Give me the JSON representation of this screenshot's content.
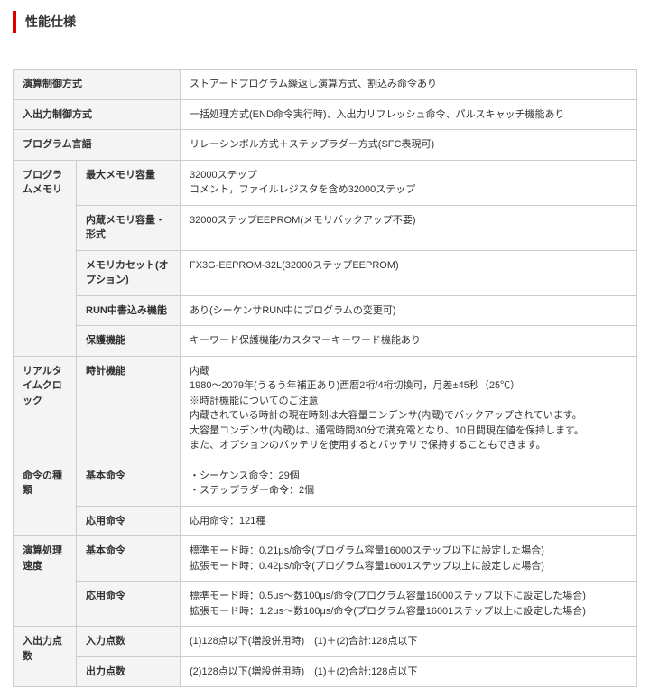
{
  "title": "性能仕様",
  "colWidths": [
    "70px",
    "115px",
    "auto"
  ],
  "rows": [
    {
      "type": "wide",
      "label": "演算制御方式",
      "value": "ストアードプログラム繰返し演算方式、割込み命令あり"
    },
    {
      "type": "wide",
      "label": "入出力制御方式",
      "value": "一括処理方式(END命令実行時)、入出力リフレッシュ命令、パルスキャッチ機能あり"
    },
    {
      "type": "wide",
      "label": "プログラム言語",
      "value": "リレーシンボル方式＋ステップラダー方式(SFC表現可)"
    },
    {
      "type": "group",
      "group": "プログラムメモリ",
      "items": [
        {
          "label": "最大メモリ容量",
          "value": "32000ステップ\nコメント，ファイルレジスタを含め32000ステップ"
        },
        {
          "label": "内蔵メモリ容量・形式",
          "value": "32000ステップEEPROM(メモリバックアップ不要)"
        },
        {
          "label": "メモリカセット(オプション)",
          "value": "FX3G-EEPROM-32L(32000ステップEEPROM)"
        },
        {
          "label": "RUN中書込み機能",
          "value": "あり(シーケンサRUN中にプログラムの変更可)"
        },
        {
          "label": "保護機能",
          "value": "キーワード保護機能/カスタマーキーワード機能あり"
        }
      ]
    },
    {
      "type": "group",
      "group": "リアルタイムクロック",
      "items": [
        {
          "label": "時計機能",
          "value": "内蔵\n1980～2079年(うるう年補正あり)西暦2桁/4桁切換可，月差±45秒（25℃）\n※時計機能についてのご注意\n内蔵されている時計の現在時刻は大容量コンデンサ(内蔵)でバックアップされています。\n大容量コンデンサ(内蔵)は、通電時間30分で満充電となり、10日間現在値を保持します。\nまた、オプションのバッテリを使用するとバッテリで保持することもできます。"
        }
      ]
    },
    {
      "type": "group",
      "group": "命令の種類",
      "items": [
        {
          "label": "基本命令",
          "value": "・シーケンス命令：29個\n・ステップラダー命令：2個"
        },
        {
          "label": "応用命令",
          "value": "応用命令：121種"
        }
      ]
    },
    {
      "type": "group",
      "group": "演算処理速度",
      "items": [
        {
          "label": "基本命令",
          "value": "標準モード時：0.21μs/命令(プログラム容量16000ステップ以下に設定した場合)\n拡張モード時：0.42μs/命令(プログラム容量16001ステップ以上に設定した場合)"
        },
        {
          "label": "応用命令",
          "value": "標準モード時：0.5μs～数100μs/命令(プログラム容量16000ステップ以下に設定した場合)\n拡張モード時：1.2μs～数100μs/命令(プログラム容量16001ステップ以上に設定した場合)"
        }
      ]
    },
    {
      "type": "group",
      "group": "入出力点数",
      "items": [
        {
          "label": "入力点数",
          "value": "(1)128点以下(増設併用時)　(1)＋(2)合計:128点以下"
        },
        {
          "label": "出力点数",
          "value": "(2)128点以下(増設併用時)　(1)＋(2)合計:128点以下"
        }
      ]
    }
  ]
}
